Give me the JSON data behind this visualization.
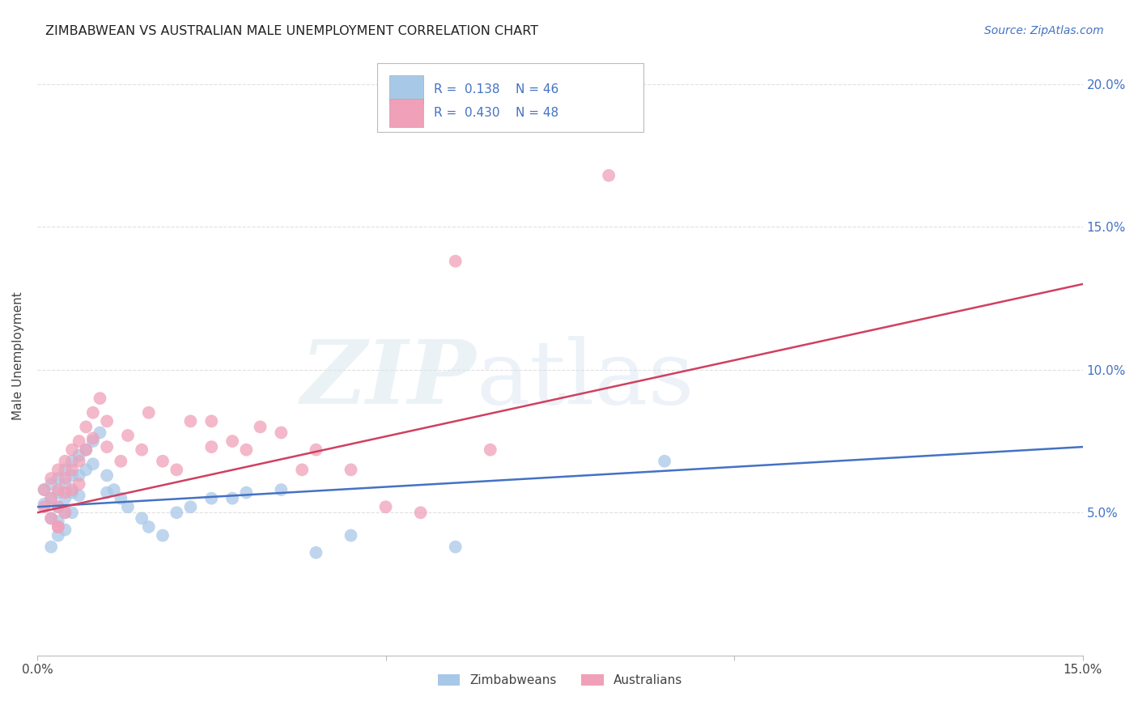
{
  "title": "ZIMBABWEAN VS AUSTRALIAN MALE UNEMPLOYMENT CORRELATION CHART",
  "source": "Source: ZipAtlas.com",
  "ylabel": "Male Unemployment",
  "xlim": [
    0.0,
    0.15
  ],
  "ylim": [
    0.0,
    0.21
  ],
  "ytick_vals": [
    0.05,
    0.1,
    0.15,
    0.2
  ],
  "ytick_labels": [
    "5.0%",
    "10.0%",
    "15.0%",
    "20.0%"
  ],
  "xtick_vals": [
    0.0,
    0.05,
    0.1,
    0.15
  ],
  "xtick_labels": [
    "0.0%",
    "",
    "",
    "15.0%"
  ],
  "blue_scatter_color": "#A8C8E8",
  "pink_scatter_color": "#F0A0B8",
  "blue_line_color": "#4472C4",
  "pink_line_color": "#D04060",
  "R_blue": 0.138,
  "N_blue": 46,
  "R_pink": 0.43,
  "N_pink": 48,
  "background_color": "#FFFFFF",
  "grid_color": "#DDDDDD",
  "blue_line_y0": 0.052,
  "blue_line_y1": 0.073,
  "pink_line_y0": 0.05,
  "pink_line_y1": 0.13,
  "zim_x": [
    0.001,
    0.001,
    0.002,
    0.002,
    0.002,
    0.003,
    0.003,
    0.003,
    0.003,
    0.003,
    0.004,
    0.004,
    0.004,
    0.004,
    0.004,
    0.005,
    0.005,
    0.005,
    0.005,
    0.006,
    0.006,
    0.006,
    0.007,
    0.007,
    0.008,
    0.008,
    0.009,
    0.01,
    0.01,
    0.011,
    0.012,
    0.013,
    0.015,
    0.016,
    0.018,
    0.02,
    0.022,
    0.025,
    0.028,
    0.03,
    0.035,
    0.04,
    0.045,
    0.06,
    0.09,
    0.002
  ],
  "zim_y": [
    0.058,
    0.053,
    0.06,
    0.055,
    0.048,
    0.062,
    0.057,
    0.052,
    0.047,
    0.042,
    0.065,
    0.06,
    0.055,
    0.05,
    0.044,
    0.068,
    0.063,
    0.057,
    0.05,
    0.07,
    0.063,
    0.056,
    0.072,
    0.065,
    0.075,
    0.067,
    0.078,
    0.063,
    0.057,
    0.058,
    0.055,
    0.052,
    0.048,
    0.045,
    0.042,
    0.05,
    0.052,
    0.055,
    0.055,
    0.057,
    0.058,
    0.036,
    0.042,
    0.038,
    0.068,
    0.038
  ],
  "aus_x": [
    0.001,
    0.001,
    0.002,
    0.002,
    0.002,
    0.003,
    0.003,
    0.003,
    0.003,
    0.004,
    0.004,
    0.004,
    0.004,
    0.005,
    0.005,
    0.005,
    0.006,
    0.006,
    0.006,
    0.007,
    0.007,
    0.008,
    0.008,
    0.009,
    0.01,
    0.01,
    0.012,
    0.013,
    0.015,
    0.016,
    0.018,
    0.02,
    0.022,
    0.025,
    0.025,
    0.028,
    0.03,
    0.032,
    0.035,
    0.038,
    0.04,
    0.045,
    0.05,
    0.055,
    0.06,
    0.065,
    0.082,
    0.003
  ],
  "aus_y": [
    0.058,
    0.052,
    0.062,
    0.055,
    0.048,
    0.065,
    0.058,
    0.052,
    0.045,
    0.068,
    0.062,
    0.057,
    0.05,
    0.072,
    0.065,
    0.058,
    0.075,
    0.068,
    0.06,
    0.08,
    0.072,
    0.085,
    0.076,
    0.09,
    0.082,
    0.073,
    0.068,
    0.077,
    0.072,
    0.085,
    0.068,
    0.065,
    0.082,
    0.082,
    0.073,
    0.075,
    0.072,
    0.08,
    0.078,
    0.065,
    0.072,
    0.065,
    0.052,
    0.05,
    0.138,
    0.072,
    0.168,
    0.045
  ]
}
